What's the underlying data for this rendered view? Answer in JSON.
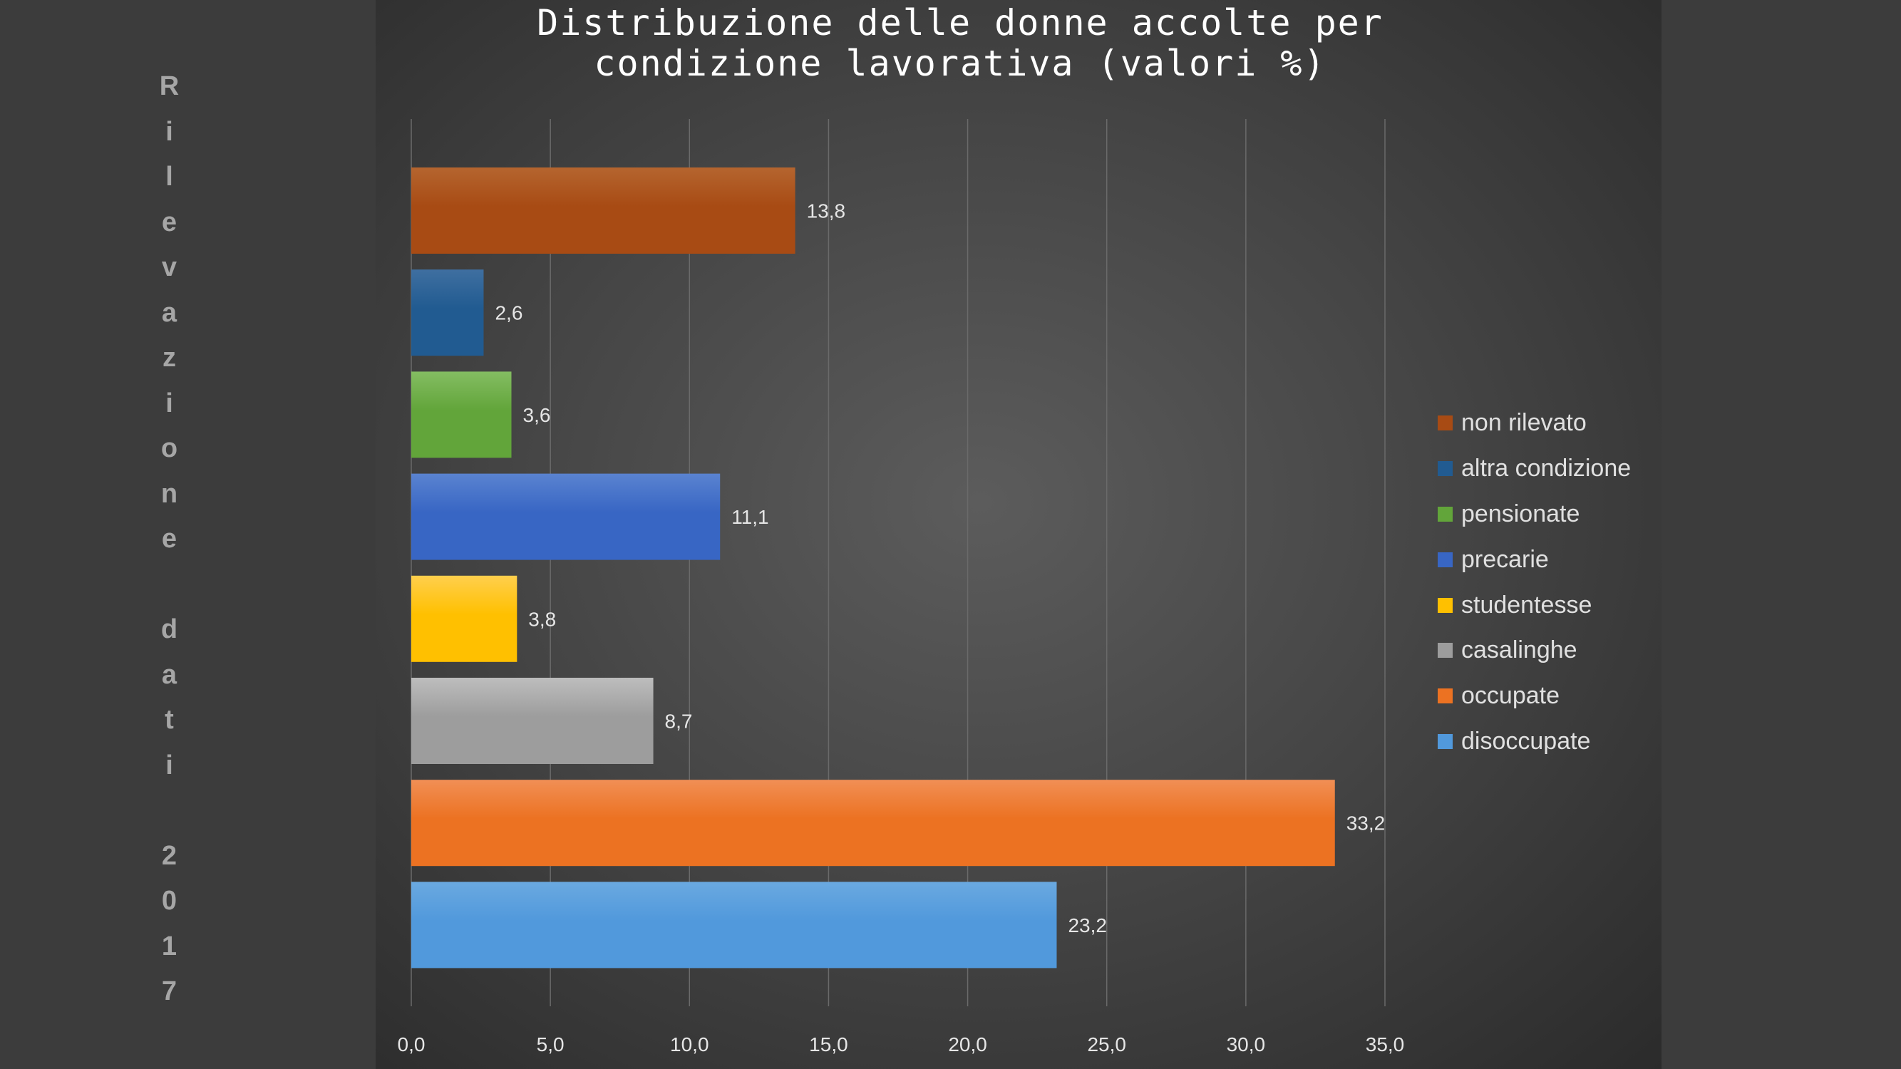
{
  "side_label": {
    "lines": [
      "R",
      "i",
      "l",
      "e",
      "v",
      "a",
      "z",
      "i",
      "o",
      "n",
      "e",
      " ",
      "d",
      "a",
      "t",
      "i",
      " ",
      "2",
      "0",
      "1",
      "7"
    ]
  },
  "chart_data": {
    "type": "bar",
    "orientation": "horizontal",
    "title": [
      "Distribuzione delle donne accolte per",
      "condizione lavorativa (valori %)"
    ],
    "xlim": [
      0,
      35
    ],
    "x_ticks": [
      "0,0",
      "5,0",
      "10,0",
      "15,0",
      "20,0",
      "25,0",
      "30,0",
      "35,0"
    ],
    "grid": "vertical",
    "legend_position": "right",
    "bars": [
      {
        "category": "non rilevato",
        "value": 13.8,
        "label": "13,8",
        "color": "#a84b14",
        "color_top": "#b5652f"
      },
      {
        "category": "altra condizione",
        "value": 2.6,
        "label": "2,6",
        "color": "#215b91",
        "color_top": "#3f6fa0"
      },
      {
        "category": "pensionate",
        "value": 3.6,
        "label": "3,6",
        "color": "#62a53a",
        "color_top": "#84bd62"
      },
      {
        "category": "precarie",
        "value": 11.1,
        "label": "11,1",
        "color": "#3866c4",
        "color_top": "#5a83d0"
      },
      {
        "category": "studentesse",
        "value": 3.8,
        "label": "3,8",
        "color": "#ffc000",
        "color_top": "#ffcf4d"
      },
      {
        "category": "casalinghe",
        "value": 8.7,
        "label": "8,7",
        "color": "#9d9d9d",
        "color_top": "#bdbdbd"
      },
      {
        "category": "occupate",
        "value": 33.2,
        "label": "33,2",
        "color": "#ec7222",
        "color_top": "#f18f55"
      },
      {
        "category": "disoccupate",
        "value": 23.2,
        "label": "23,2",
        "color": "#5199dc",
        "color_top": "#6aa9e0"
      }
    ],
    "colors": {
      "value_label": "#e6e6e6",
      "tick_label": "#e6e6e6",
      "gridline": "#6a6a6a"
    }
  }
}
